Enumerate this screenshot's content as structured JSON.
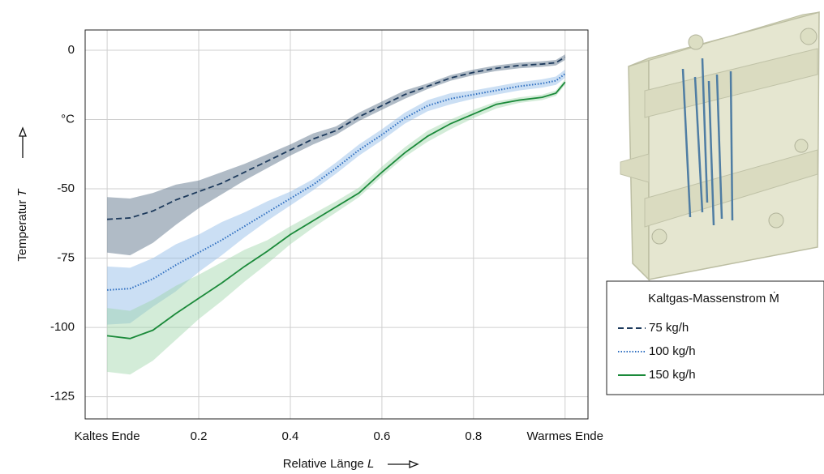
{
  "chart_data": {
    "type": "line_band",
    "x_label": "Relative Länge",
    "x_label_symbol": "L",
    "y_label": "Temperatur",
    "y_label_symbol": "T",
    "xlim": [
      -0.048,
      1.05
    ],
    "ylim": [
      -133,
      7.3
    ],
    "xticks": [
      {
        "value": 0,
        "label": "Kaltes Ende"
      },
      0.2,
      0.4,
      0.6,
      0.8,
      {
        "value": 1,
        "label": "Warmes Ende"
      }
    ],
    "yticks": [
      0,
      {
        "value": -25,
        "label": "°C"
      },
      -50,
      -75,
      -100,
      -125
    ],
    "grid": true,
    "legend_title": "Kaltgas-Massenstrom Ṁ",
    "x": [
      0,
      0.05,
      0.1,
      0.15,
      0.2,
      0.25,
      0.3,
      0.35,
      0.4,
      0.45,
      0.5,
      0.55,
      0.6,
      0.65,
      0.7,
      0.75,
      0.8,
      0.85,
      0.9,
      0.95,
      0.98,
      1
    ],
    "series": [
      {
        "name": "75 kg/h",
        "color": "#1d3a5c",
        "band_color": "#4f6880",
        "style": "dashed",
        "values": [
          -61,
          -60.5,
          -58,
          -54,
          -51,
          -48,
          -44,
          -40,
          -36,
          -32,
          -29,
          -24,
          -20,
          -16,
          -13,
          -10,
          -8,
          -6.5,
          -5.5,
          -5,
          -4.5,
          -2.5
        ],
        "lower": [
          -73,
          -74,
          -69.5,
          -63,
          -57,
          -52,
          -47,
          -42.5,
          -38,
          -34,
          -30.5,
          -25.5,
          -21.5,
          -17.5,
          -14,
          -11,
          -9,
          -7.5,
          -6.5,
          -6,
          -5.5,
          -3.5
        ],
        "upper": [
          -53,
          -53.5,
          -51.5,
          -48.5,
          -47,
          -44,
          -41,
          -37.5,
          -34,
          -30,
          -27.5,
          -22.5,
          -18.5,
          -14.5,
          -12,
          -9,
          -7,
          -5.5,
          -4.5,
          -4,
          -3.5,
          -1.5
        ]
      },
      {
        "name": "100 kg/h",
        "color": "#2f6fc0",
        "band_color": "#8cb8e6",
        "style": "dotted",
        "values": [
          -86.5,
          -86,
          -82.5,
          -77.5,
          -73,
          -68.5,
          -63.5,
          -58.5,
          -53.5,
          -48.5,
          -42.5,
          -36,
          -30.5,
          -24.5,
          -20,
          -17.5,
          -16,
          -14.5,
          -13,
          -12,
          -11,
          -8.5
        ],
        "lower": [
          -99,
          -98.5,
          -92.5,
          -87,
          -80,
          -74,
          -67.5,
          -61.5,
          -56,
          -50.5,
          -44.5,
          -38,
          -32.5,
          -26.5,
          -22,
          -19.5,
          -17.5,
          -16,
          -14.5,
          -13.5,
          -12.5,
          -10
        ],
        "upper": [
          -78,
          -78.5,
          -75,
          -70,
          -66.5,
          -62,
          -58.5,
          -54.5,
          -51,
          -46.5,
          -40.5,
          -34,
          -28.5,
          -22.5,
          -18,
          -15.5,
          -14.5,
          -13,
          -11.5,
          -10.5,
          -9.5,
          -7
        ]
      },
      {
        "name": "150 kg/h",
        "color": "#1b8a3a",
        "band_color": "#9ed4a8",
        "style": "solid",
        "values": [
          -103,
          -104,
          -101,
          -95,
          -89.5,
          -84,
          -78,
          -72.5,
          -66.5,
          -61.5,
          -56.5,
          -51.5,
          -44,
          -37,
          -31,
          -26.5,
          -23,
          -19.5,
          -18,
          -17,
          -15.5,
          -11.5
        ],
        "lower": [
          -116,
          -117,
          -112,
          -104.5,
          -97,
          -90.5,
          -83.5,
          -77,
          -70,
          -64,
          -58.5,
          -53,
          -45.5,
          -38.5,
          -33,
          -28.5,
          -24.5,
          -21,
          -19,
          -18,
          -16.5,
          -12.5
        ],
        "upper": [
          -93,
          -94,
          -90,
          -85,
          -81,
          -76.5,
          -72,
          -68.5,
          -63.5,
          -59,
          -54.5,
          -49.5,
          -42,
          -35,
          -29,
          -25,
          -21.5,
          -18.5,
          -17,
          -16,
          -14.5,
          -10.5
        ]
      }
    ]
  }
}
